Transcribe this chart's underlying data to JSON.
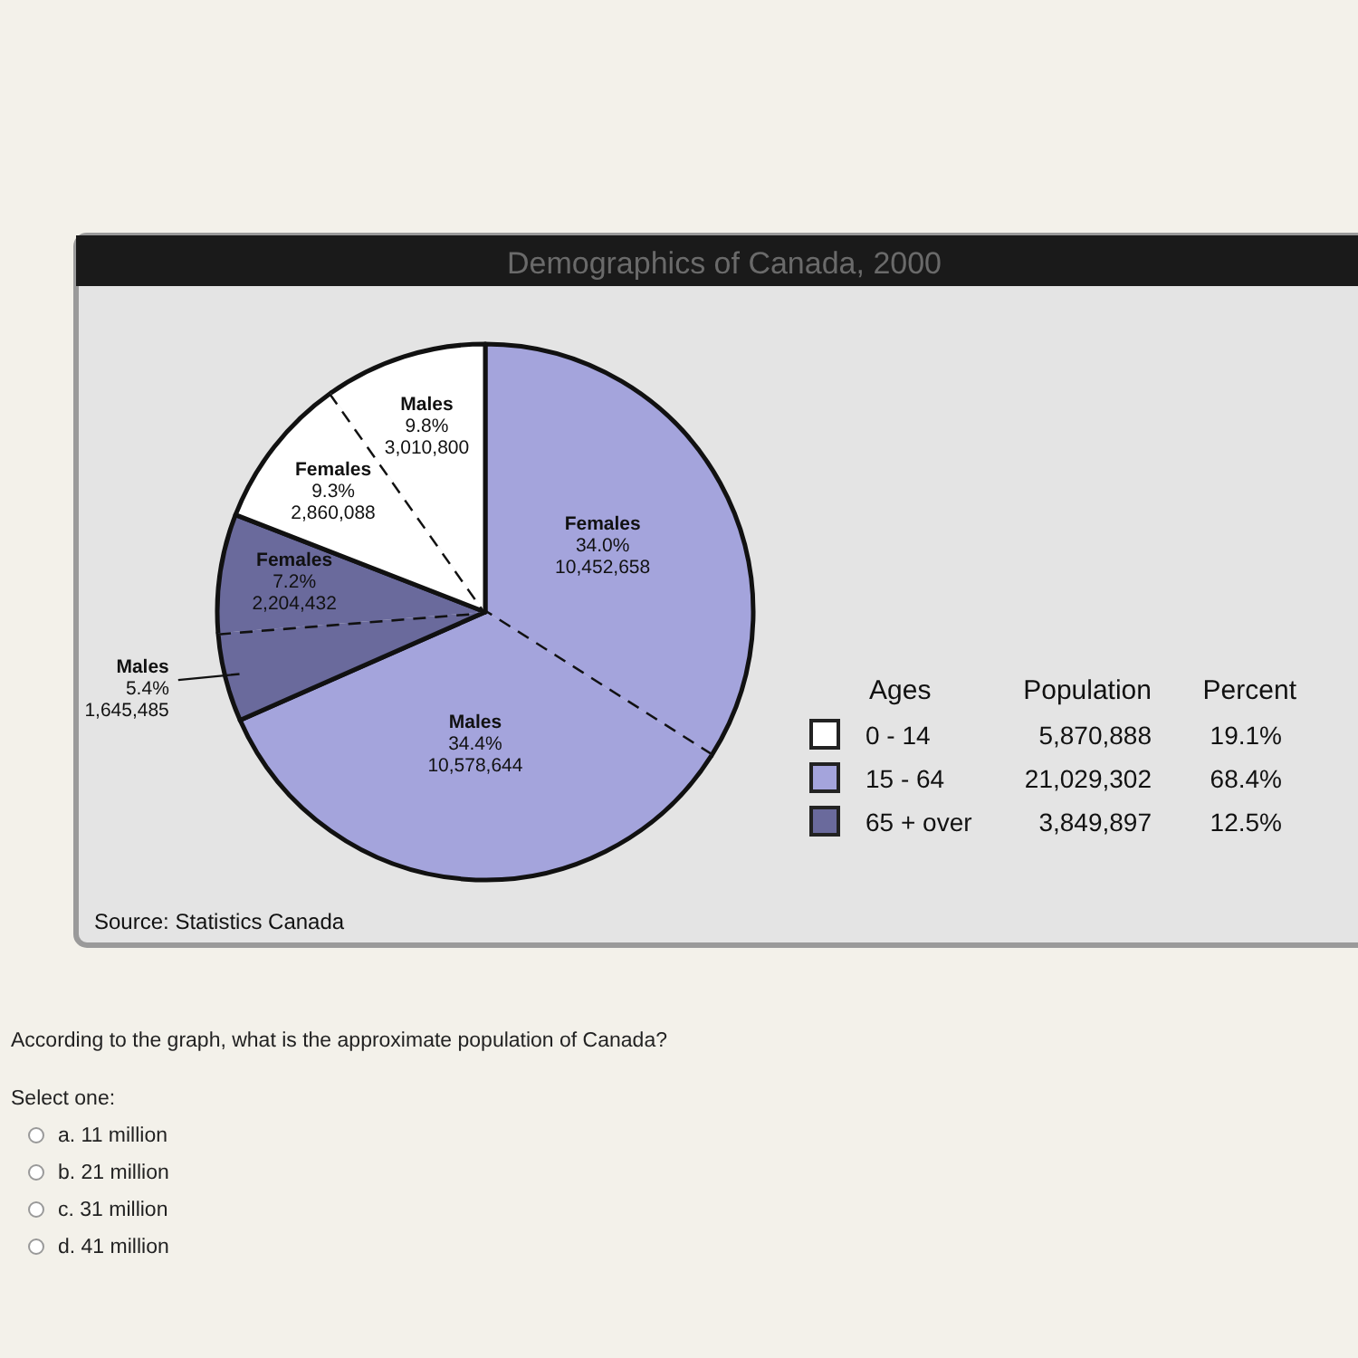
{
  "chart_data": [
    {
      "type": "pie",
      "title": "Demographics of Canada, 2000",
      "categories": [
        "Females",
        "Males",
        "Males",
        "Females",
        "Females",
        "Males"
      ],
      "values": [
        10452658,
        10578644,
        1645485,
        2204432,
        2860088,
        3010800
      ],
      "value_labels": [
        "34.0%\n10,452,658",
        "34.4%\n10,578,644",
        "5.4%\n1,645,485",
        "7.2%\n2,204,432",
        "9.3%\n2,860,088",
        "9.8%\n3,010,800"
      ],
      "colors": [
        "#a4a4dc",
        "#a4a4dc",
        "#6a6a9c",
        "#6a6a9c",
        "#ffffff",
        "#ffffff"
      ],
      "annotations": [
        "Source: Statistics Canada",
        "According to the graph, what is the approximate population of Canada?",
        "Select one:",
        "a. 11 million",
        "b. 21 million",
        "c. 31 million",
        "d. 41 million"
      ]
    },
    {
      "type": "other",
      "legend_title": "Ages",
      "categories": [
        "0 - 14",
        "15 - 64",
        "65 + over"
      ],
      "colors": [
        "#ffffff",
        "#a4a4dc",
        "#6a6a9c"
      ],
      "series": [
        {
          "name": "Population",
          "values": [
            5870888,
            21029302,
            3849897
          ],
          "value_labels": [
            "5,870,888",
            "21,029,302",
            "3,849,897"
          ]
        },
        {
          "name": "Percent",
          "values": [
            19.1,
            68.4,
            12.5
          ],
          "value_labels": [
            "19.1%",
            "68.4%",
            "12.5%"
          ]
        }
      ]
    }
  ]
}
